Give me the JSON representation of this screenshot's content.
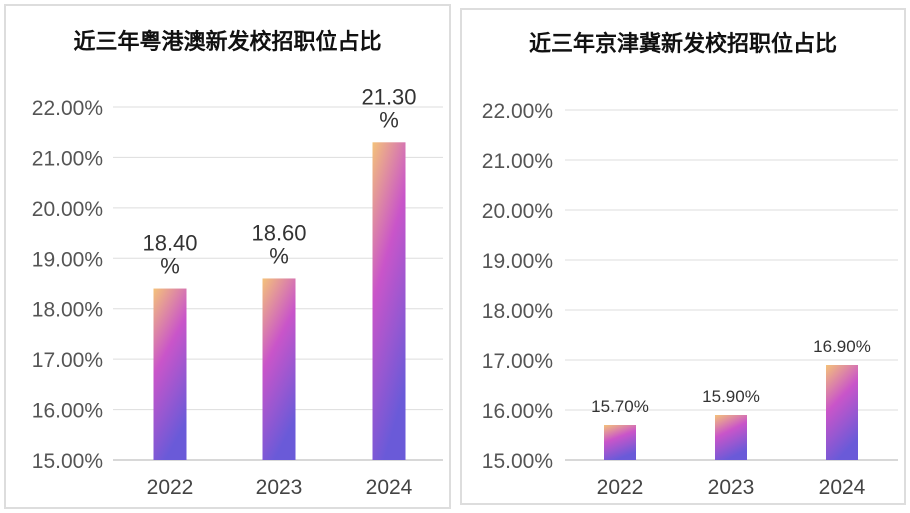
{
  "chart_data": [
    {
      "type": "bar",
      "title": "近三年粤港澳新发校招职位占比",
      "categories": [
        "2022",
        "2023",
        "2024"
      ],
      "values": [
        18.4,
        18.6,
        21.3
      ],
      "value_labels": [
        "18.40%",
        "18.60%",
        "21.30%"
      ],
      "ylim": [
        15,
        22
      ],
      "yticks": [
        "15.00%",
        "16.00%",
        "17.00%",
        "18.00%",
        "19.00%",
        "20.00%",
        "21.00%",
        "22.00%"
      ],
      "grid": true,
      "colors": {
        "bar_top": "#f4c27a",
        "bar_mid": "#c955c9",
        "bar_bottom": "#6a5ad8",
        "grid": "#dddddd",
        "axis": "#cccccc"
      }
    },
    {
      "type": "bar",
      "title": "近三年京津冀新发校招职位占比",
      "categories": [
        "2022",
        "2023",
        "2024"
      ],
      "values": [
        15.7,
        15.9,
        16.9
      ],
      "value_labels": [
        "15.70%",
        "15.90%",
        "16.90%"
      ],
      "ylim": [
        15,
        22
      ],
      "yticks": [
        "15.00%",
        "16.00%",
        "17.00%",
        "18.00%",
        "19.00%",
        "20.00%",
        "21.00%",
        "22.00%"
      ],
      "grid": true,
      "colors": {
        "bar_top": "#f4c27a",
        "bar_mid": "#c955c9",
        "bar_bottom": "#6a5ad8",
        "grid": "#dddddd",
        "axis": "#cccccc"
      }
    }
  ]
}
